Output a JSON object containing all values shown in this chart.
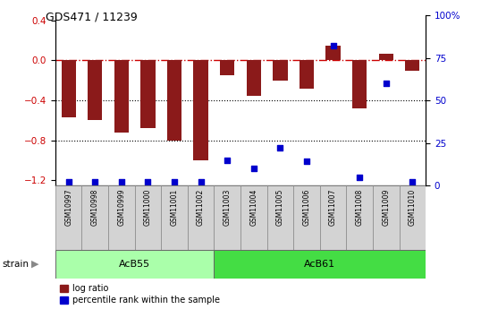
{
  "title": "GDS471 / 11239",
  "samples": [
    "GSM10997",
    "GSM10998",
    "GSM10999",
    "GSM11000",
    "GSM11001",
    "GSM11002",
    "GSM11003",
    "GSM11004",
    "GSM11005",
    "GSM11006",
    "GSM11007",
    "GSM11008",
    "GSM11009",
    "GSM11010"
  ],
  "log_ratio": [
    -0.57,
    -0.6,
    -0.72,
    -0.68,
    -0.8,
    -1.0,
    -0.15,
    -0.35,
    -0.2,
    -0.28,
    0.15,
    -0.48,
    0.07,
    -0.1
  ],
  "percentile_rank": [
    2,
    2,
    2,
    2,
    2,
    2,
    15,
    10,
    22,
    14,
    82,
    5,
    60,
    2
  ],
  "acb55_count": 6,
  "acb61_count": 8,
  "bar_color": "#8B1A1A",
  "dot_color": "#0000CD",
  "dashed_line_color": "#CC0000",
  "bg_color": "#FFFFFF",
  "fig_bg_color": "#FFFFFF",
  "ylim_left": [
    -1.25,
    0.45
  ],
  "ylim_right": [
    0,
    100
  ],
  "yticks_left": [
    0.4,
    0.0,
    -0.4,
    -0.8,
    -1.2
  ],
  "yticks_right": [
    100,
    75,
    50,
    25,
    0
  ],
  "yticks_right_labels": [
    "100%",
    "75",
    "50",
    "25",
    "0"
  ],
  "dotted_lines": [
    -0.4,
    -0.8
  ],
  "acb55_label": "AcB55",
  "acb61_label": "AcB61",
  "strain_label": "strain",
  "legend_logratio": "log ratio",
  "legend_percentile": "percentile rank within the sample",
  "acb55_color": "#AAFFAA",
  "acb61_color": "#44DD44"
}
